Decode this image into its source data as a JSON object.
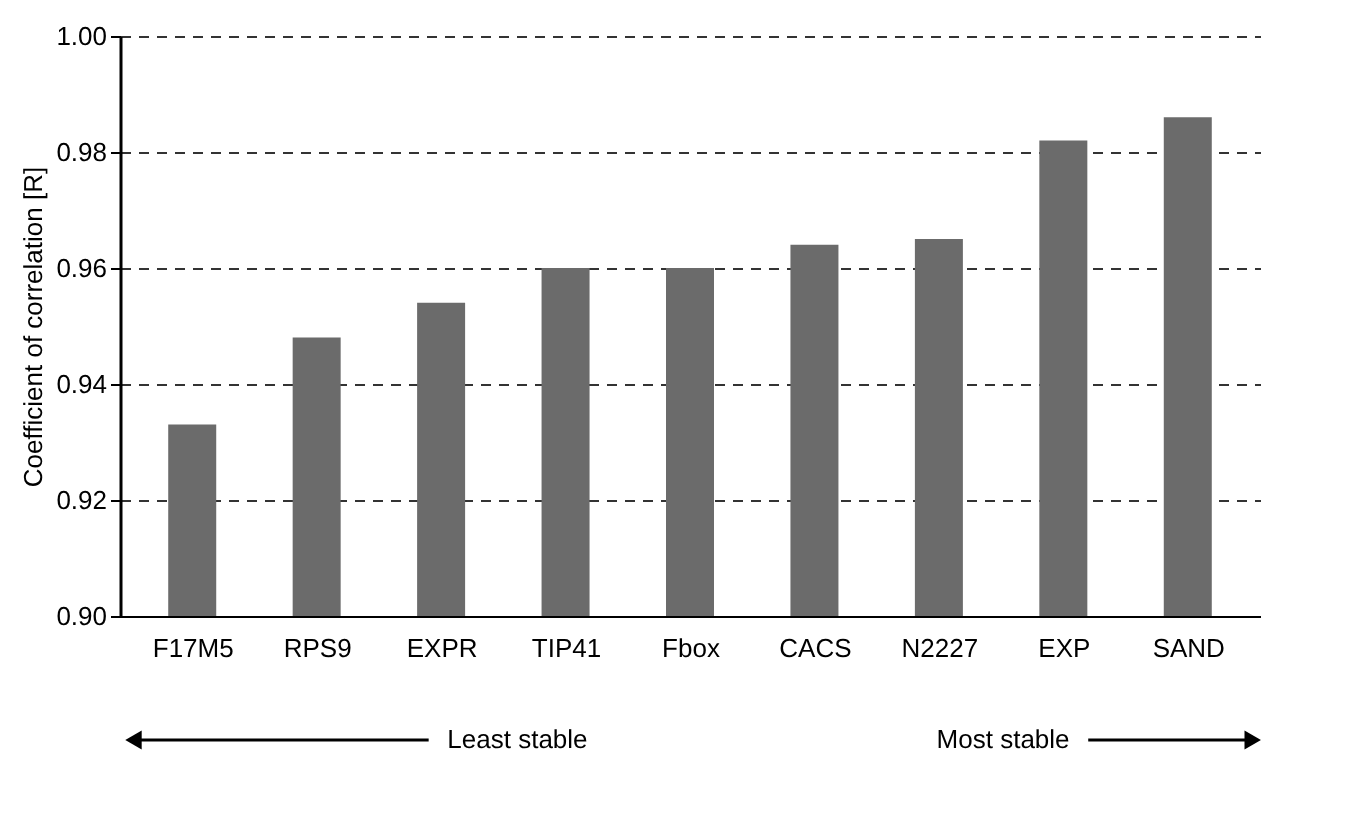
{
  "chart_data": {
    "type": "bar",
    "categories": [
      "F17M5",
      "RPS9",
      "EXPR",
      "TIP41",
      "Fbox",
      "CACS",
      "N2227",
      "EXP",
      "SAND"
    ],
    "values": [
      0.933,
      0.948,
      0.954,
      0.96,
      0.96,
      0.964,
      0.965,
      0.982,
      0.986
    ],
    "color": "#6b6b6b",
    "ylabel": "Coefficient of correlation [R]",
    "ylim": [
      0.9,
      1.0
    ],
    "yticks": [
      {
        "value": 0.9,
        "label": "0.90"
      },
      {
        "value": 0.92,
        "label": "0.92"
      },
      {
        "value": 0.94,
        "label": "0.94"
      },
      {
        "value": 0.96,
        "label": "0.96"
      },
      {
        "value": 0.98,
        "label": "0.98"
      },
      {
        "value": 1.0,
        "label": "1.00"
      }
    ],
    "grid": "y",
    "line_style": "dashed",
    "annotations": [
      "Least stable",
      "Most stable"
    ]
  }
}
